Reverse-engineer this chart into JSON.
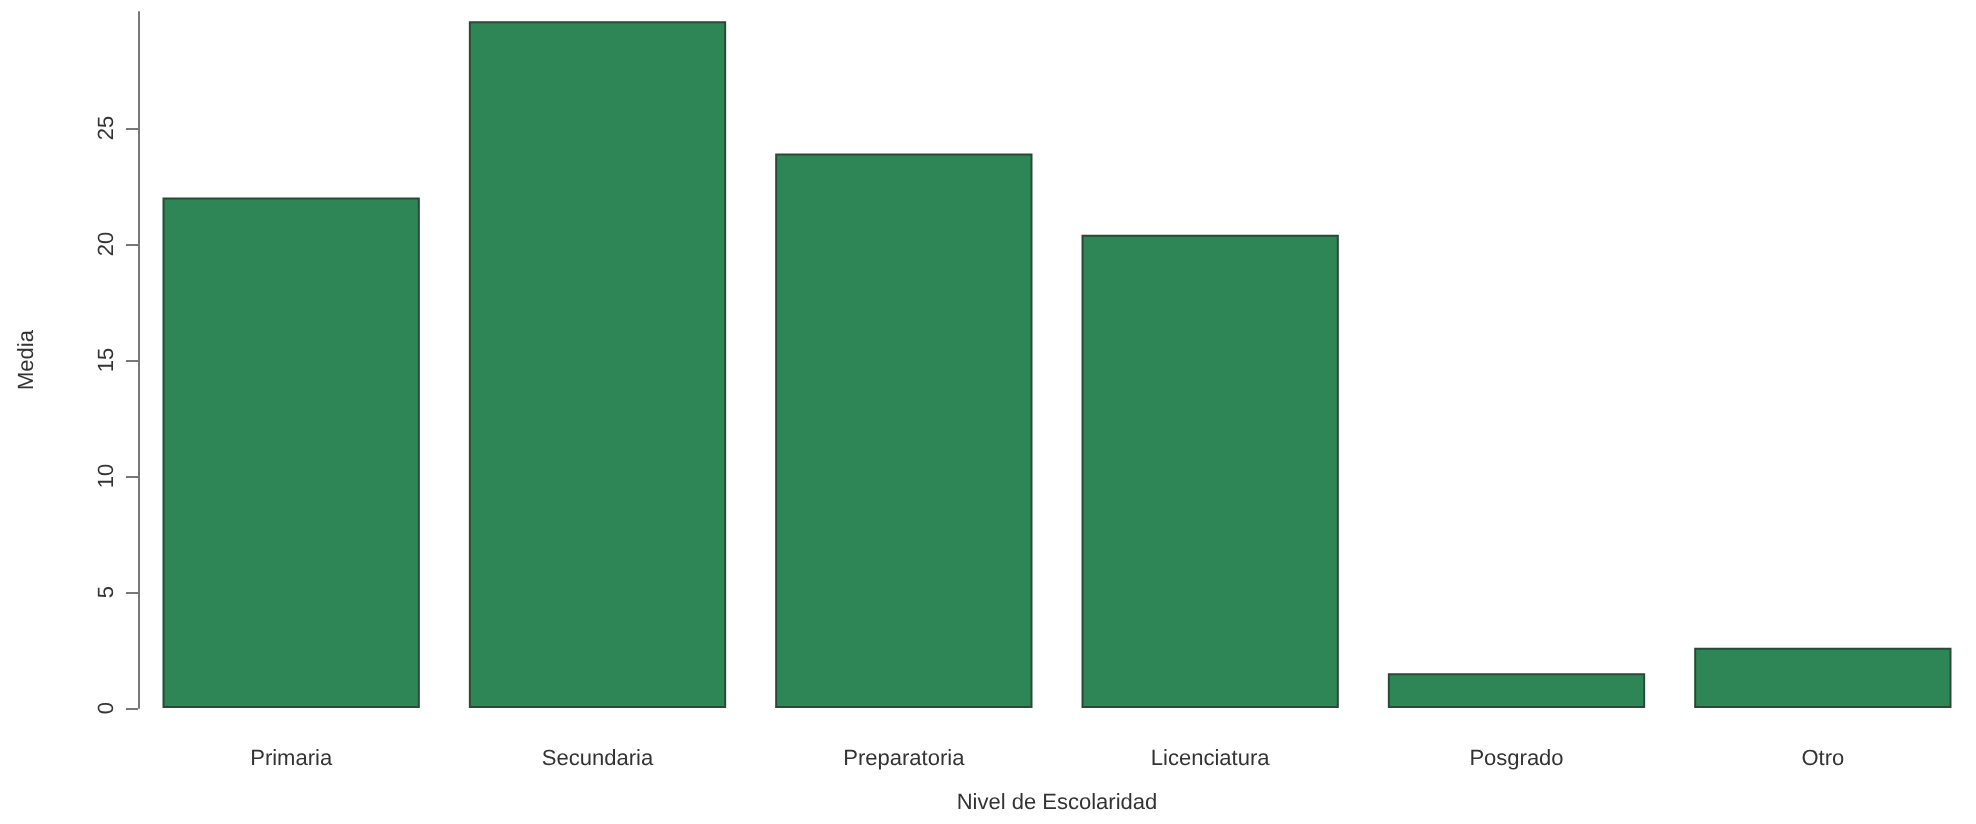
{
  "chart_data": {
    "type": "bar",
    "xlabel": "Nivel de Escolaridad",
    "ylabel": "Media",
    "categories": [
      "Primaria",
      "Secundaria",
      "Preparatoria",
      "Licenciatura",
      "Posgrado",
      "Otro"
    ],
    "values": [
      22.0,
      29.6,
      23.9,
      20.4,
      1.5,
      2.6
    ],
    "color": "#2e8555",
    "ylim": [
      0,
      30
    ],
    "yticks": [
      0,
      5,
      10,
      15,
      20,
      25
    ],
    "grid": false
  }
}
